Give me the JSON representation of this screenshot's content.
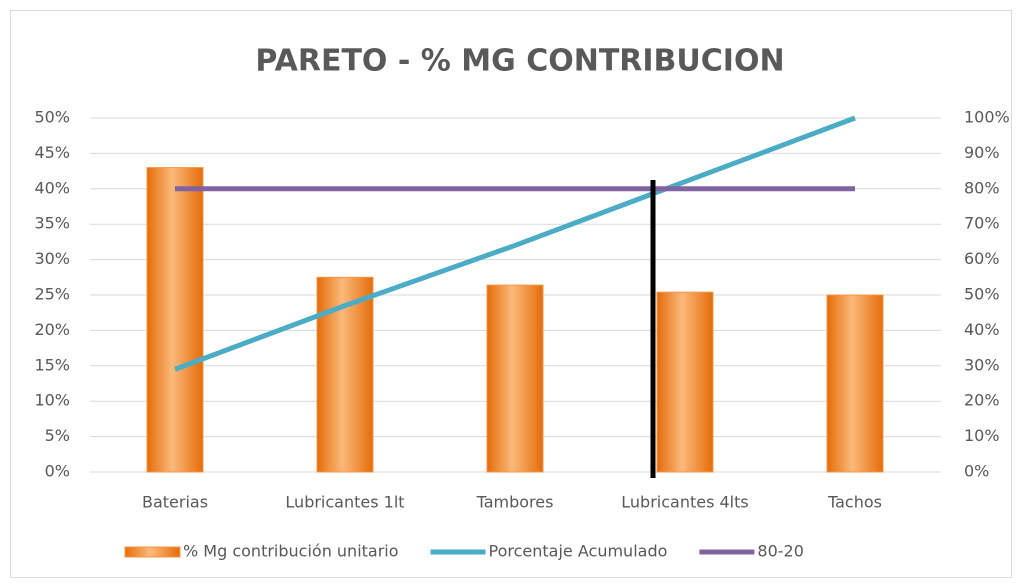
{
  "chart_data": {
    "type": "pareto",
    "title": "PARETO - % MG CONTRIBUCION",
    "categories": [
      "Baterias",
      "Lubricantes 1lt",
      "Tambores",
      "Lubricantes 4lts",
      "Tachos"
    ],
    "series": [
      {
        "name": "% Mg contribución unitario",
        "type": "bar",
        "color": "#f79646",
        "axis": "y",
        "values": [
          43,
          27.5,
          26.4,
          25.4,
          25
        ]
      },
      {
        "name": "Porcentaje Acumulado",
        "type": "line",
        "color": "#4bacc6",
        "axis": "y2",
        "values": [
          29,
          47,
          64,
          82,
          100
        ]
      },
      {
        "name": "80-20",
        "type": "line",
        "color": "#8064a2",
        "axis": "y2",
        "values": [
          80,
          80,
          80,
          80,
          80
        ]
      }
    ],
    "ylim": [
      0,
      50
    ],
    "yticks": [
      {
        "value": 0,
        "label": "0%"
      },
      {
        "value": 5,
        "label": "5%"
      },
      {
        "value": 10,
        "label": "10%"
      },
      {
        "value": 15,
        "label": "15%"
      },
      {
        "value": 20,
        "label": "20%"
      },
      {
        "value": 25,
        "label": "25%"
      },
      {
        "value": 30,
        "label": "30%"
      },
      {
        "value": 35,
        "label": "35%"
      },
      {
        "value": 40,
        "label": "40%"
      },
      {
        "value": 45,
        "label": "45%"
      },
      {
        "value": 50,
        "label": "50%"
      }
    ],
    "y2lim": [
      0,
      100
    ],
    "y2ticks": [
      {
        "value": 0,
        "label": "0%"
      },
      {
        "value": 10,
        "label": "10%"
      },
      {
        "value": 20,
        "label": "20%"
      },
      {
        "value": 30,
        "label": "30%"
      },
      {
        "value": 40,
        "label": "40%"
      },
      {
        "value": 50,
        "label": "50%"
      },
      {
        "value": 60,
        "label": "60%"
      },
      {
        "value": 70,
        "label": "70%"
      },
      {
        "value": 80,
        "label": "80%"
      },
      {
        "value": 90,
        "label": "90%"
      },
      {
        "value": 100,
        "label": "100%"
      }
    ],
    "legend": "bottom"
  }
}
